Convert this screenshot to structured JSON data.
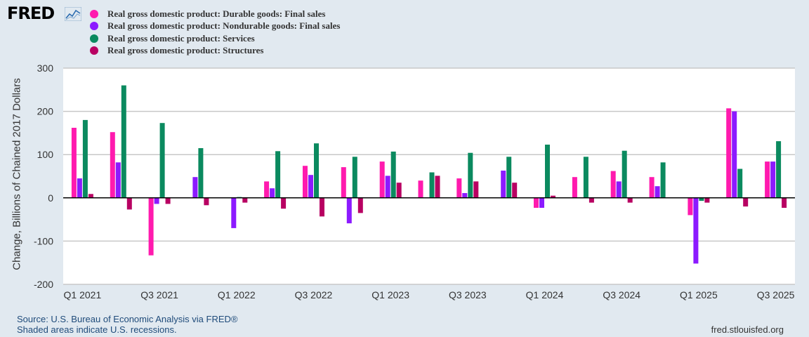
{
  "header": {
    "logo": "FRED"
  },
  "legend": [
    {
      "label": "Real gross domestic product: Durable goods: Final sales",
      "color": "#ff1aae"
    },
    {
      "label": "Real gross domestic product: Nondurable goods: Final sales",
      "color": "#8c1aff"
    },
    {
      "label": "Real gross domestic product: Services",
      "color": "#0b8a5f"
    },
    {
      "label": "Real gross domestic product: Structures",
      "color": "#b80062"
    }
  ],
  "footer": {
    "source": "Source: U.S. Bureau of Economic Analysis via FRED®",
    "recessions": "Shaded areas indicate U.S. recessions.",
    "site": "fred.stlouisfed.org"
  },
  "chart_data": {
    "type": "bar",
    "ylabel": "Change, Billions of Chained 2017 Dollars",
    "ylim": [
      -200,
      300
    ],
    "yticks": [
      300,
      200,
      100,
      0,
      -100,
      -200
    ],
    "xtick_labels": [
      "Q1 2021",
      "Q3 2021",
      "Q1 2022",
      "Q3 2022",
      "Q1 2023",
      "Q3 2023",
      "Q1 2024",
      "Q3 2024",
      "Q1 2025",
      "Q3 2025"
    ],
    "categories": [
      "Q1 2021",
      "Q2 2021",
      "Q3 2021",
      "Q4 2021",
      "Q1 2022",
      "Q2 2022",
      "Q3 2022",
      "Q4 2022",
      "Q1 2023",
      "Q2 2023",
      "Q3 2023",
      "Q4 2023",
      "Q1 2024",
      "Q2 2024",
      "Q3 2024",
      "Q4 2024",
      "Q1 2025",
      "Q2 2025",
      "Q3 2025"
    ],
    "series": [
      {
        "name": "Real gross domestic product: Durable goods: Final sales",
        "color": "#ff1aae",
        "values": [
          162,
          152,
          -133,
          0,
          0,
          38,
          74,
          71,
          84,
          40,
          45,
          0,
          -23,
          48,
          62,
          48,
          -40,
          207,
          84
        ]
      },
      {
        "name": "Real gross domestic product: Nondurable goods: Final sales",
        "color": "#8c1aff",
        "values": [
          45,
          82,
          -14,
          48,
          -70,
          22,
          53,
          -59,
          51,
          0,
          11,
          63,
          -23,
          0,
          38,
          27,
          -152,
          200,
          84
        ]
      },
      {
        "name": "Real gross domestic product: Services",
        "color": "#0b8a5f",
        "values": [
          180,
          260,
          173,
          115,
          2,
          108,
          126,
          95,
          107,
          59,
          104,
          95,
          123,
          95,
          109,
          82,
          -7,
          67,
          131
        ]
      },
      {
        "name": "Real gross domestic product: Structures",
        "color": "#b80062",
        "values": [
          9,
          -27,
          -14,
          -17,
          -11,
          -25,
          -43,
          -35,
          35,
          51,
          38,
          35,
          5,
          -11,
          -11,
          0,
          -11,
          -20,
          -23
        ]
      }
    ]
  }
}
